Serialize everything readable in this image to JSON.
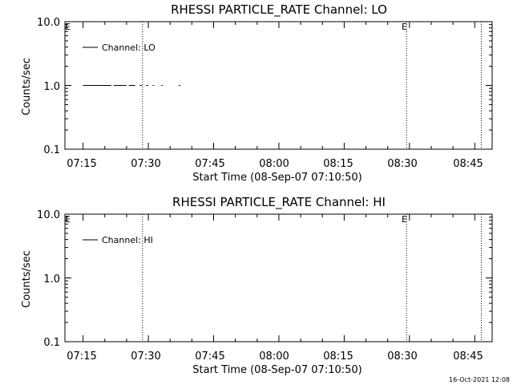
{
  "footer": {
    "timestamp": "16-Oct-2021 12:08"
  },
  "chart_data": [
    {
      "type": "line",
      "title": "RHESSI PARTICLE_RATE Channel: LO",
      "xlabel": "Start Time (08-Sep-07 07:10:50)",
      "ylabel": "Counts/sec",
      "y_scale": "log",
      "ylim": [
        0.1,
        10.0
      ],
      "xlim": [
        "07:10:50",
        "08:49:00"
      ],
      "x_ticks": [
        "07:15",
        "07:30",
        "07:45",
        "08:00",
        "08:15",
        "08:30",
        "08:45"
      ],
      "y_ticks": [
        "10.0",
        "1.0",
        "0.1"
      ],
      "legend": {
        "position": "top-left",
        "entries": [
          "Channel: LO"
        ]
      },
      "markers": [
        {
          "x": "07:28:40",
          "label": ""
        },
        {
          "x": "08:29:20",
          "label": "E"
        },
        {
          "x": "08:46:30",
          "label": ""
        }
      ],
      "corner_labels": {
        "top_left": "E"
      },
      "series": [
        {
          "name": "Channel: LO",
          "segments": [
            {
              "x": [
                "07:15:00",
                "07:21:30"
              ],
              "y": 1.0
            },
            {
              "x": [
                "07:22:00",
                "07:25:00"
              ],
              "y": 1.0
            },
            {
              "x": [
                "07:25:30",
                "07:27:00"
              ],
              "y": 1.0
            },
            {
              "x": [
                "07:28:00",
                "07:28:30"
              ],
              "y": 1.0
            },
            {
              "x": [
                "07:29:30",
                "07:30:00"
              ],
              "y": 1.0
            },
            {
              "x": [
                "07:31:00",
                "07:31:20"
              ],
              "y": 1.0
            },
            {
              "x": [
                "07:33:00",
                "07:33:20"
              ],
              "y": 1.0
            },
            {
              "x": [
                "07:37:00",
                "07:37:20"
              ],
              "y": 1.0
            }
          ]
        }
      ]
    },
    {
      "type": "line",
      "title": "RHESSI PARTICLE_RATE Channel: HI",
      "xlabel": "Start Time (08-Sep-07 07:10:50)",
      "ylabel": "Counts/sec",
      "y_scale": "log",
      "ylim": [
        0.1,
        10.0
      ],
      "xlim": [
        "07:10:50",
        "08:49:00"
      ],
      "x_ticks": [
        "07:15",
        "07:30",
        "07:45",
        "08:00",
        "08:15",
        "08:30",
        "08:45"
      ],
      "y_ticks": [
        "10.0",
        "1.0",
        "0.1"
      ],
      "legend": {
        "position": "top-left",
        "entries": [
          "Channel: HI"
        ]
      },
      "markers": [
        {
          "x": "07:28:40",
          "label": ""
        },
        {
          "x": "08:29:20",
          "label": "E"
        },
        {
          "x": "08:46:30",
          "label": ""
        }
      ],
      "corner_labels": {
        "top_left": "E"
      },
      "series": [
        {
          "name": "Channel: HI",
          "segments": []
        }
      ]
    }
  ]
}
